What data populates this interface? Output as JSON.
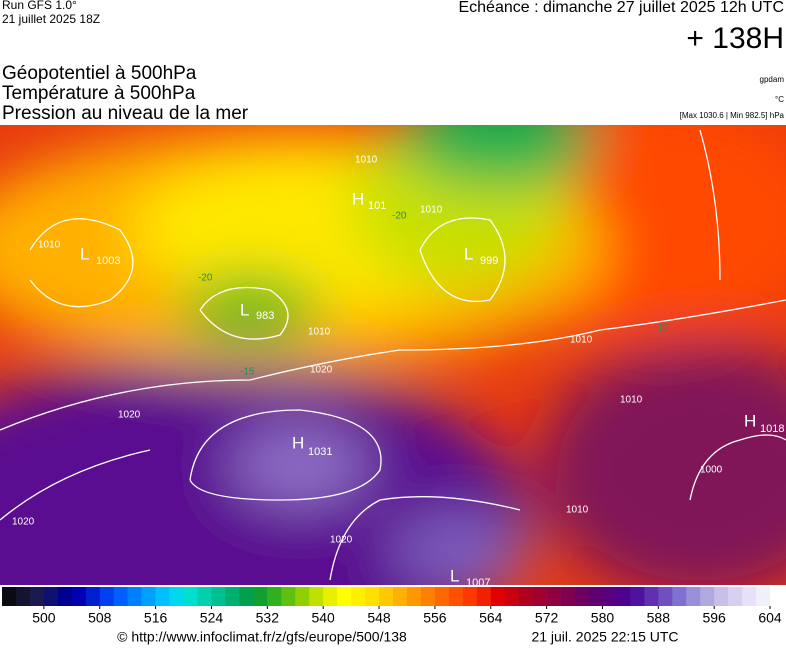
{
  "header": {
    "run": "Run GFS 1.0°",
    "run_date": "21 juillet 2025 18Z",
    "valid": "Echéance : dimanche 27 juillet 2025 12h UTC",
    "lead": "+ 138H",
    "fields": [
      "Géopotentiel à 500hPa",
      "Température à 500hPa",
      "Pression au niveau de la mer"
    ],
    "units": [
      "gpdam",
      "°C",
      "[Max 1030.6 | Min 982.5] hPa"
    ]
  },
  "centers": [
    {
      "letter": "H",
      "value": "1031"
    },
    {
      "letter": "L",
      "value": "983"
    },
    {
      "letter": "L",
      "value": "999"
    },
    {
      "letter": "L",
      "value": "1003"
    },
    {
      "letter": "H",
      "value": "1018"
    },
    {
      "letter": "L",
      "value": "1007"
    },
    {
      "letter": "H",
      "value": "101"
    }
  ],
  "isobar_labels": [
    "1010",
    "1020",
    "1020",
    "1020",
    "1010",
    "1010",
    "1010",
    "1020",
    "1010",
    "1000",
    "1010",
    "1010"
  ],
  "temp_labels": [
    "-20",
    "-15",
    "-20",
    "-10"
  ],
  "colorbar": {
    "lim": [
      494,
      606
    ],
    "ticks": [
      500,
      508,
      516,
      524,
      532,
      540,
      548,
      556,
      564,
      572,
      580,
      588,
      596,
      604
    ],
    "colors": [
      "#0a0a14",
      "#141430",
      "#1a1a50",
      "#101070",
      "#000090",
      "#0000b0",
      "#0020d0",
      "#0040f0",
      "#0060ff",
      "#0080ff",
      "#00a0ff",
      "#00c0ff",
      "#00d8f0",
      "#00e0d0",
      "#00d0b0",
      "#00c090",
      "#00b070",
      "#00a050",
      "#10a030",
      "#30b020",
      "#60c010",
      "#90d000",
      "#c0e000",
      "#e8f000",
      "#ffff00",
      "#fff000",
      "#ffe000",
      "#ffc800",
      "#ffb000",
      "#ff9800",
      "#ff8000",
      "#ff6800",
      "#ff5000",
      "#ff3800",
      "#f02000",
      "#e00000",
      "#c80010",
      "#b00020",
      "#a00030",
      "#900040",
      "#800050",
      "#700060",
      "#600070",
      "#580080",
      "#500090",
      "#5010a0",
      "#6030b0",
      "#7050c0",
      "#8070d0",
      "#9890d8",
      "#b0a8e0",
      "#c8c0e8",
      "#d8d0f0",
      "#e8e0f8",
      "#f0f0f8",
      "#ffffff"
    ]
  },
  "footer": {
    "source": "© http://www.infoclimat.fr/z/gfs/europe/500/138",
    "generated": "21 juil. 2025 22:15 UTC"
  }
}
